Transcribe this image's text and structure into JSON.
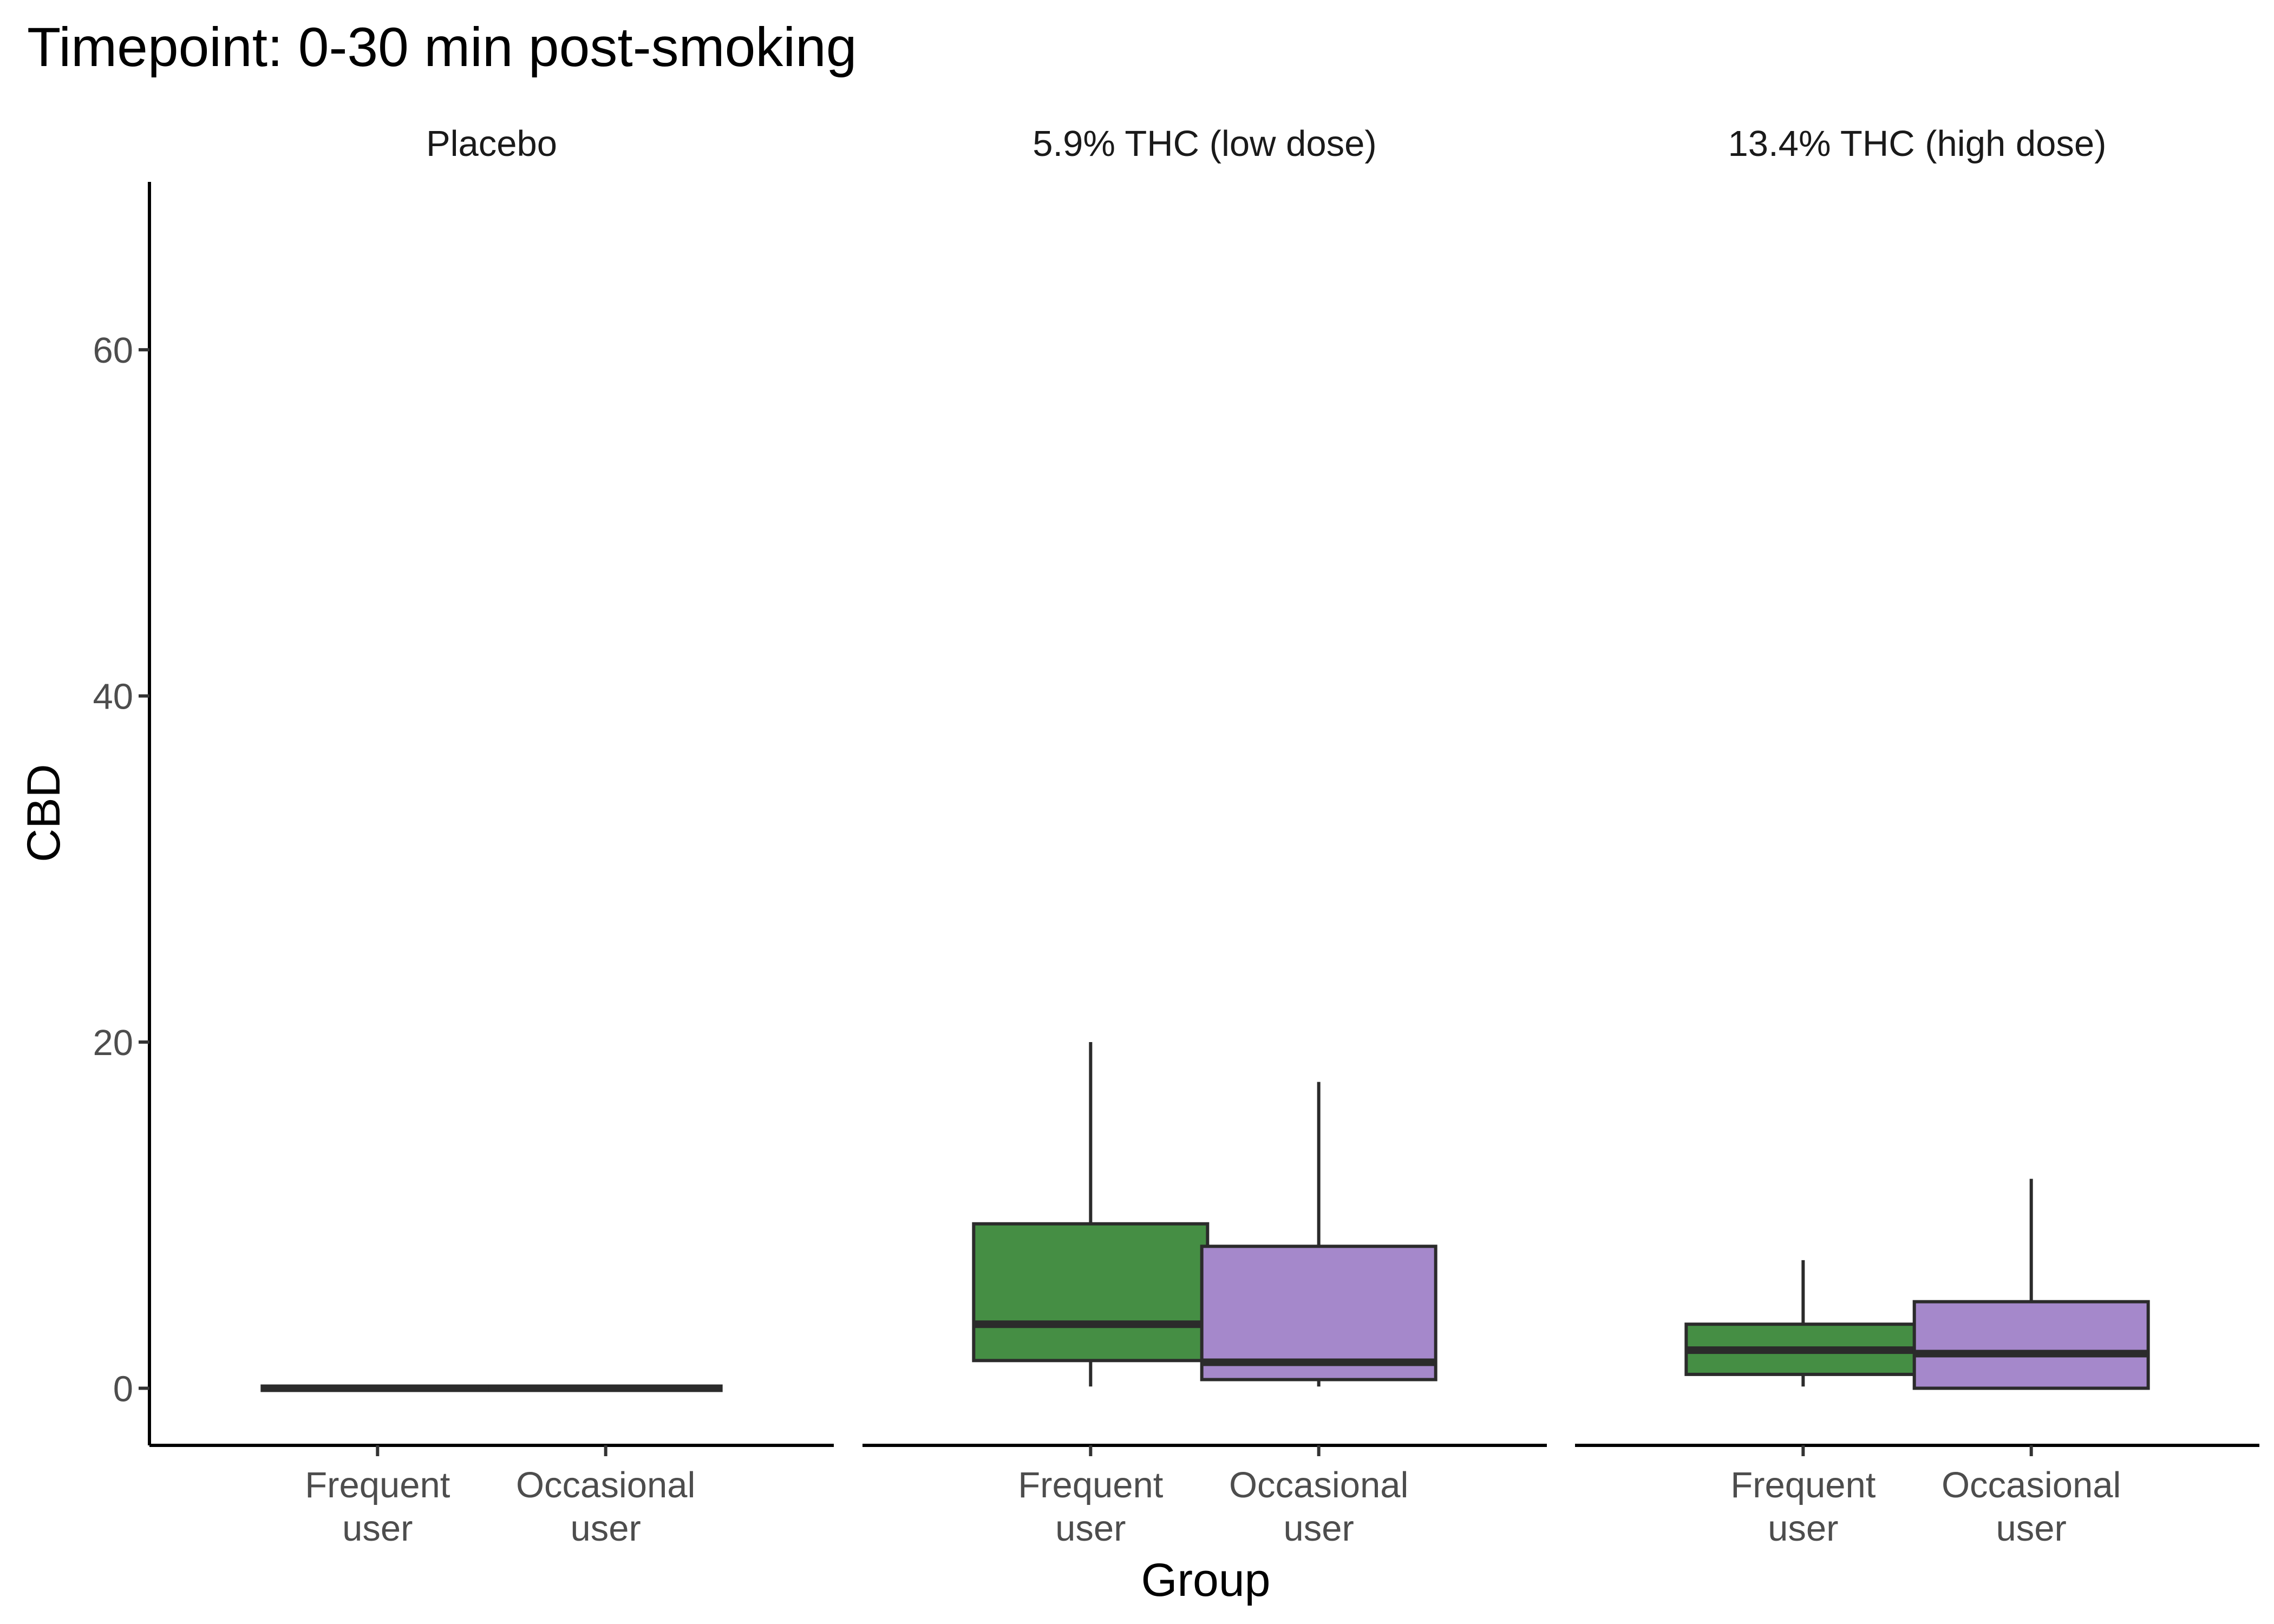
{
  "chart_data": {
    "type": "boxplot",
    "title": "Timepoint: 0-30 min post-smoking",
    "xlabel": "Group",
    "ylabel": "CBD",
    "ylim": [
      -3.3,
      69.7
    ],
    "yticks": [
      0,
      20,
      40,
      60
    ],
    "grid": false,
    "legend": "none",
    "categories": [
      [
        "Frequent",
        "user"
      ],
      [
        "Occasional",
        "user"
      ]
    ],
    "colors": {
      "Frequent user": "#458E44",
      "Occasional user": "#A588CB"
    },
    "panels": [
      {
        "label": "Placebo",
        "boxes": [
          {
            "group": "Frequent user",
            "min": 0,
            "q1": 0,
            "median": 0,
            "q3": 0,
            "max": 0
          },
          {
            "group": "Occasional user",
            "min": 0,
            "q1": 0,
            "median": 0,
            "q3": 0,
            "max": 0
          }
        ]
      },
      {
        "label": "5.9% THC (low dose)",
        "boxes": [
          {
            "group": "Frequent user",
            "min": 0.1,
            "q1": 1.6,
            "median": 3.7,
            "q3": 9.5,
            "max": 20.0
          },
          {
            "group": "Occasional user",
            "min": 0.1,
            "q1": 0.5,
            "median": 1.5,
            "q3": 8.2,
            "max": 17.7
          }
        ]
      },
      {
        "label": "13.4% THC (high dose)",
        "boxes": [
          {
            "group": "Frequent user",
            "min": 0.1,
            "q1": 0.8,
            "median": 2.2,
            "q3": 3.7,
            "max": 7.4
          },
          {
            "group": "Occasional user",
            "min": 0,
            "q1": 0,
            "median": 2.0,
            "q3": 5.0,
            "max": 12.1
          }
        ]
      }
    ]
  }
}
